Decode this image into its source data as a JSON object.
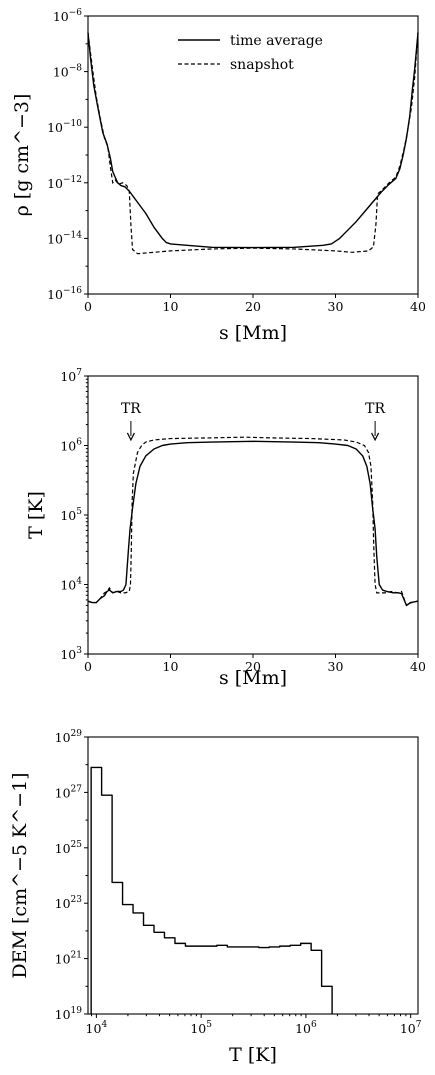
{
  "chart_data": [
    {
      "type": "line",
      "panel": "density",
      "ylabel": "ρ [g cm^−3]",
      "xlabel": "s [Mm]",
      "xlim": [
        0,
        40
      ],
      "ylim_log10": [
        -16,
        -6
      ],
      "yscale": "log",
      "x_ticks": [
        "0",
        "10",
        "20",
        "30",
        "40"
      ],
      "y_ticks": [
        {
          "base": "10",
          "exp": "−6"
        },
        {
          "base": "10",
          "exp": "−8"
        },
        {
          "base": "10",
          "exp": "−10"
        },
        {
          "base": "10",
          "exp": "−12"
        },
        {
          "base": "10",
          "exp": "−14"
        },
        {
          "base": "10",
          "exp": "−16"
        }
      ],
      "legend": {
        "placement": "top-center",
        "entries": [
          "time average",
          "snapshot"
        ]
      },
      "series": [
        {
          "name": "time average",
          "style": "solid",
          "x": [
            0,
            0.3,
            0.7,
            1.2,
            1.8,
            2.3,
            2.7,
            3.0,
            3.3,
            3.6,
            4.0,
            4.5,
            5.0,
            5.5,
            6.0,
            7.0,
            8.0,
            8.5,
            9.0,
            9.5,
            10.0,
            12.0,
            15.0,
            20.0,
            25.0,
            28.5,
            29.5,
            30.5,
            31.5,
            32.5,
            33.5,
            34.5,
            35.5,
            36.5,
            37.3,
            37.8,
            38.2,
            38.6,
            39.0,
            39.3,
            39.6,
            40.0
          ],
          "y": [
            -6.6,
            -7.5,
            -8.5,
            -9.3,
            -10.2,
            -10.6,
            -11.1,
            -11.6,
            -11.8,
            -12.0,
            -12.1,
            -12.15,
            -12.3,
            -12.5,
            -12.7,
            -13.1,
            -13.6,
            -13.8,
            -14.0,
            -14.15,
            -14.2,
            -14.25,
            -14.32,
            -14.33,
            -14.32,
            -14.25,
            -14.2,
            -14.0,
            -13.7,
            -13.4,
            -13.05,
            -12.7,
            -12.35,
            -12.05,
            -11.85,
            -11.5,
            -11.0,
            -10.4,
            -9.6,
            -8.7,
            -7.9,
            -6.6
          ]
        },
        {
          "name": "snapshot",
          "style": "dashed",
          "x": [
            0,
            0.5,
            1.0,
            1.5,
            2.0,
            2.4,
            2.7,
            3.0,
            3.3,
            3.7,
            4.2,
            4.7,
            5.0,
            5.2,
            5.4,
            6.0,
            8.0,
            10.0,
            15.0,
            20.0,
            25.0,
            30.0,
            32.0,
            34.0,
            34.6,
            34.9,
            35.1,
            35.5,
            36.5,
            37.3,
            37.8,
            38.3,
            38.7,
            39.2,
            39.6,
            40.0
          ],
          "y": [
            -6.6,
            -7.8,
            -8.9,
            -9.7,
            -10.4,
            -10.7,
            -11.4,
            -12.0,
            -11.9,
            -12.05,
            -12.0,
            -12.1,
            -12.3,
            -13.5,
            -14.4,
            -14.55,
            -14.5,
            -14.45,
            -14.38,
            -14.35,
            -14.38,
            -14.45,
            -14.5,
            -14.45,
            -14.3,
            -13.5,
            -12.4,
            -12.3,
            -12.0,
            -11.8,
            -11.4,
            -10.8,
            -10.2,
            -9.3,
            -8.2,
            -6.6
          ]
        }
      ]
    },
    {
      "type": "line",
      "panel": "temperature",
      "ylabel": "T [K]",
      "xlabel": "s [Mm]",
      "xlim": [
        0,
        40
      ],
      "ylim_log10": [
        3,
        7
      ],
      "yscale": "log",
      "x_ticks": [
        "0",
        "10",
        "20",
        "30",
        "40"
      ],
      "y_ticks": [
        {
          "base": "10",
          "exp": "7"
        },
        {
          "base": "10",
          "exp": "6"
        },
        {
          "base": "10",
          "exp": "5"
        },
        {
          "base": "10",
          "exp": "4"
        },
        {
          "base": "10",
          "exp": "3"
        }
      ],
      "annotations": [
        {
          "text": "TR",
          "x": 5.2,
          "arrow_to_log10_T": 6.08
        },
        {
          "text": "TR",
          "x": 34.8,
          "arrow_to_log10_T": 6.08
        }
      ],
      "series": [
        {
          "name": "time average",
          "style": "solid",
          "x": [
            0,
            0.5,
            1.0,
            1.5,
            2.0,
            2.3,
            2.6,
            3.0,
            3.5,
            4.0,
            4.3,
            4.6,
            4.9,
            5.1,
            5.4,
            5.8,
            6.3,
            7.0,
            8.0,
            9.0,
            10.0,
            12.0,
            15.0,
            20.0,
            25.0,
            28.0,
            30.0,
            31.5,
            32.5,
            33.3,
            33.8,
            34.2,
            34.5,
            34.8,
            35.0,
            35.3,
            35.7,
            36.2,
            37.0,
            37.6,
            38.0,
            38.6,
            39.0,
            39.5,
            40.0
          ],
          "y": [
            3.76,
            3.74,
            3.74,
            3.8,
            3.84,
            3.9,
            3.92,
            3.88,
            3.9,
            3.9,
            3.92,
            4.0,
            4.5,
            4.8,
            5.1,
            5.45,
            5.7,
            5.85,
            5.95,
            6.0,
            6.02,
            6.04,
            6.05,
            6.06,
            6.05,
            6.04,
            6.02,
            6.0,
            5.95,
            5.85,
            5.7,
            5.45,
            5.1,
            4.8,
            4.4,
            4.0,
            3.92,
            3.9,
            3.88,
            3.88,
            3.87,
            3.7,
            3.73,
            3.75,
            3.76
          ]
        },
        {
          "name": "snapshot",
          "style": "dashed",
          "x": [
            0,
            0.5,
            1.0,
            1.5,
            2.0,
            2.3,
            2.6,
            3.0,
            3.5,
            4.0,
            4.5,
            5.0,
            5.15,
            5.25,
            5.35,
            5.5,
            6.0,
            6.5,
            7.0,
            8.0,
            10.0,
            15.0,
            19.0,
            22.0,
            27.0,
            31.0,
            32.5,
            33.5,
            34.0,
            34.3,
            34.5,
            34.65,
            34.8,
            35.0,
            35.5,
            36.0,
            36.8,
            37.5,
            38.0,
            38.6,
            39.0,
            39.5,
            40.0
          ],
          "y": [
            3.76,
            3.74,
            3.74,
            3.8,
            3.88,
            3.9,
            3.95,
            3.88,
            3.9,
            3.88,
            3.88,
            3.9,
            4.0,
            4.5,
            5.2,
            5.6,
            5.9,
            6.0,
            6.05,
            6.08,
            6.1,
            6.11,
            6.12,
            6.11,
            6.1,
            6.08,
            6.05,
            6.0,
            5.9,
            5.7,
            5.2,
            4.5,
            4.0,
            3.88,
            3.88,
            3.88,
            3.9,
            3.88,
            3.9,
            3.7,
            3.74,
            3.75,
            3.76
          ]
        }
      ]
    },
    {
      "type": "step",
      "panel": "dem",
      "ylabel": "DEM [cm^−5 K^−1]",
      "xlabel": "T [K]",
      "xscale": "log",
      "yscale": "log",
      "xlim_log10": [
        3.92,
        7.07
      ],
      "ylim_log10": [
        19,
        29
      ],
      "x_ticks": [
        {
          "base": "10",
          "exp": "4"
        },
        {
          "base": "10",
          "exp": "5"
        },
        {
          "base": "10",
          "exp": "6"
        },
        {
          "base": "10",
          "exp": "7"
        }
      ],
      "y_ticks": [
        {
          "base": "10",
          "exp": "29"
        },
        {
          "base": "10",
          "exp": "27"
        },
        {
          "base": "10",
          "exp": "25"
        },
        {
          "base": "10",
          "exp": "23"
        },
        {
          "base": "10",
          "exp": "21"
        },
        {
          "base": "10",
          "exp": "19"
        }
      ],
      "bin_edges_log10_T": [
        3.95,
        4.05,
        4.15,
        4.25,
        4.35,
        4.45,
        4.55,
        4.65,
        4.75,
        4.85,
        4.95,
        5.05,
        5.15,
        5.25,
        5.35,
        5.45,
        5.55,
        5.65,
        5.75,
        5.85,
        5.95,
        6.05,
        6.15,
        6.25
      ],
      "values_log10_DEM": [
        27.9,
        26.9,
        23.75,
        22.95,
        22.65,
        22.2,
        21.95,
        21.75,
        21.55,
        21.45,
        21.45,
        21.45,
        21.48,
        21.42,
        21.42,
        21.42,
        21.4,
        21.42,
        21.45,
        21.48,
        21.55,
        21.3,
        20.0
      ]
    }
  ]
}
